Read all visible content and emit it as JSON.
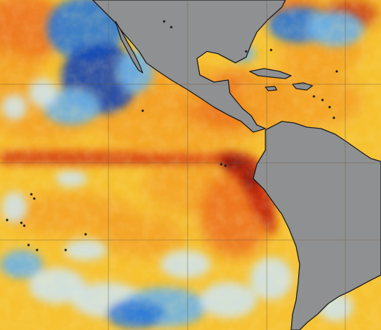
{
  "map": {
    "type": "sea-surface-temperature-anomaly",
    "palette": {
      "ocean_base": "#f6c231",
      "warm_mid": "#f3a126",
      "warm_strong": "#ec6f1c",
      "warm_extreme": "#c42a10",
      "hot_core": "#7a0d08",
      "cool_light": "#cfe3ec",
      "cool_mid": "#6fb3e6",
      "cool_strong": "#2d79d6",
      "cool_deep": "#1747b4",
      "land": "#8f9091",
      "coast": "#1b1b1b",
      "gridline": "#6b5a3e"
    },
    "gridlines": {
      "latitudes": [
        118,
        228,
        336
      ],
      "longitudes": [
        152,
        263,
        374,
        484
      ]
    }
  }
}
